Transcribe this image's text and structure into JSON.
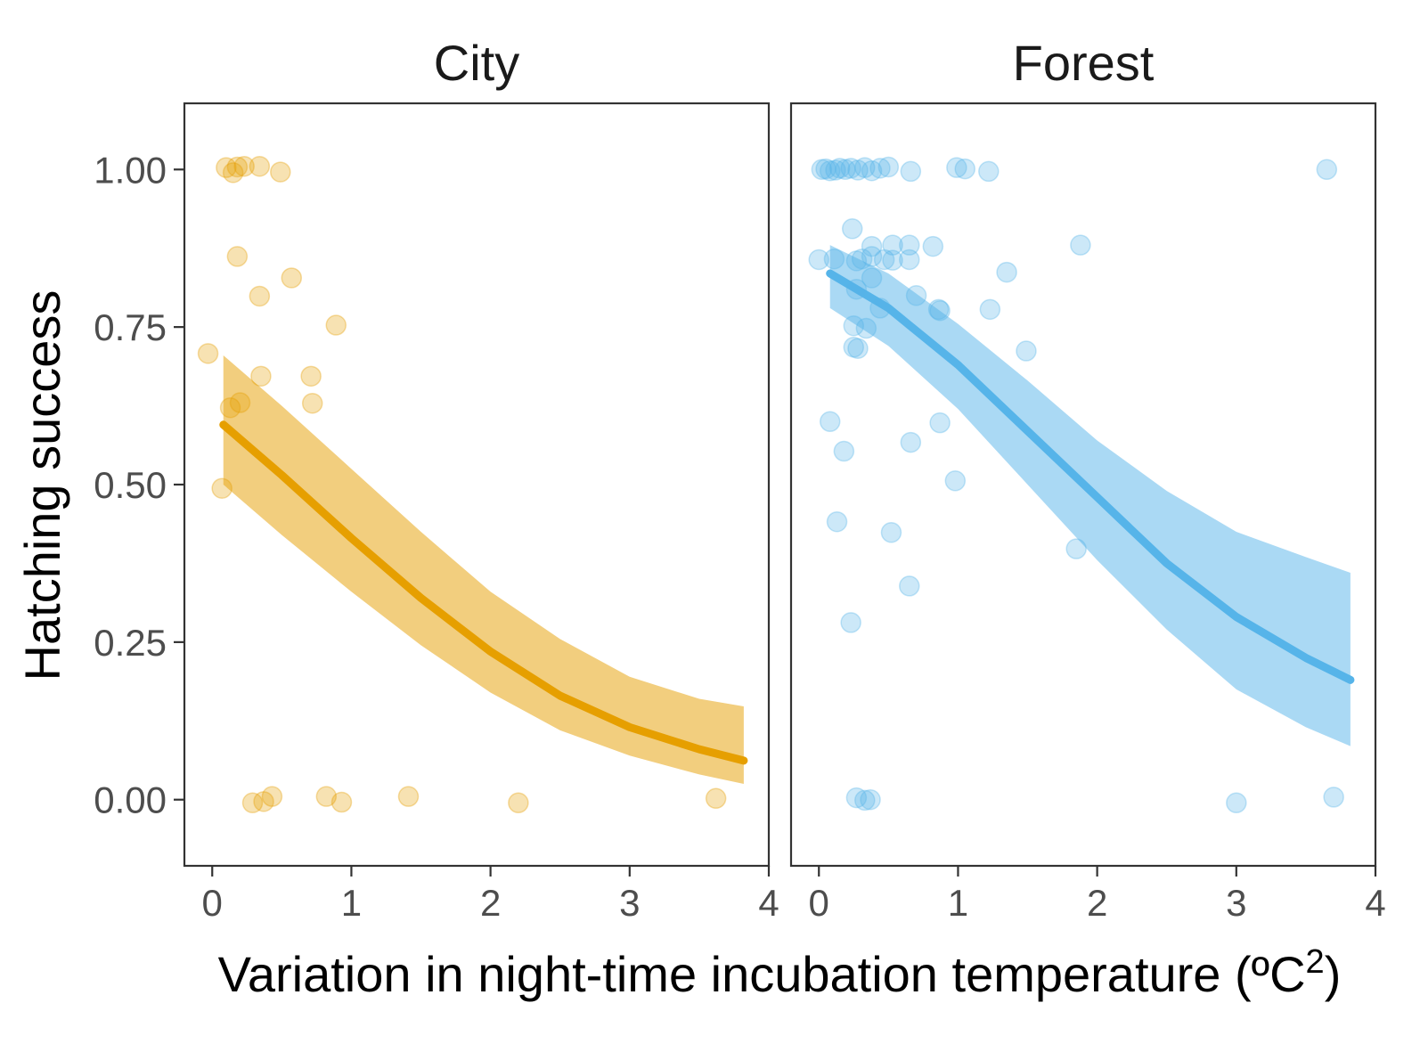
{
  "chart_data": {
    "type": "scatter",
    "ylabel": "Hatching success",
    "xlabel": "Variation in night-time incubation temperature  (ºC²)",
    "xlim": [
      -0.2,
      4.0
    ],
    "ylim": [
      -0.105,
      1.105
    ],
    "x_ticks": [
      "0",
      "1",
      "2",
      "3",
      "4"
    ],
    "y_ticks": [
      "1.00",
      "0.75",
      "0.50",
      "0.25",
      "0.00"
    ],
    "grid": false,
    "panels": [
      {
        "title": "City",
        "color": "#E69F00",
        "band_color": "#F2CE7E",
        "points": [
          [
            0.1,
            1.003
          ],
          [
            0.15,
            0.995
          ],
          [
            0.18,
            1.004
          ],
          [
            0.23,
            1.005
          ],
          [
            0.34,
            1.005
          ],
          [
            0.49,
            0.996
          ],
          [
            0.18,
            0.862
          ],
          [
            0.57,
            0.828
          ],
          [
            0.34,
            0.799
          ],
          [
            0.89,
            0.753
          ],
          [
            -0.03,
            0.708
          ],
          [
            0.35,
            0.672
          ],
          [
            0.71,
            0.672
          ],
          [
            0.2,
            0.63
          ],
          [
            0.13,
            0.622
          ],
          [
            0.72,
            0.629
          ],
          [
            0.07,
            0.494
          ],
          [
            0.29,
            -0.005
          ],
          [
            0.37,
            -0.003
          ],
          [
            0.43,
            0.005
          ],
          [
            0.82,
            0.005
          ],
          [
            0.93,
            -0.004
          ],
          [
            1.41,
            0.005
          ],
          [
            2.2,
            -0.005
          ],
          [
            3.62,
            0.002
          ]
        ],
        "fit": {
          "x": [
            0.08,
            0.5,
            1.0,
            1.5,
            2.0,
            2.5,
            3.0,
            3.5,
            3.82
          ],
          "y": [
            0.595,
            0.515,
            0.415,
            0.32,
            0.235,
            0.165,
            0.115,
            0.08,
            0.062
          ],
          "lower": [
            0.5,
            0.42,
            0.33,
            0.245,
            0.17,
            0.11,
            0.07,
            0.04,
            0.025
          ],
          "upper": [
            0.705,
            0.625,
            0.525,
            0.425,
            0.33,
            0.255,
            0.195,
            0.16,
            0.148
          ]
        }
      },
      {
        "title": "Forest",
        "color": "#56B4E9",
        "band_color": "#AAD9F4",
        "points": [
          [
            0.02,
            1.0
          ],
          [
            0.05,
            1.001
          ],
          [
            0.08,
            0.998
          ],
          [
            0.12,
            0.999
          ],
          [
            0.15,
            1.002
          ],
          [
            0.19,
            1.0
          ],
          [
            0.23,
            1.002
          ],
          [
            0.28,
            0.999
          ],
          [
            0.33,
            1.003
          ],
          [
            0.38,
            0.998
          ],
          [
            0.44,
            1.002
          ],
          [
            0.5,
            1.004
          ],
          [
            0.66,
            0.997
          ],
          [
            0.99,
            1.003
          ],
          [
            1.05,
            1.001
          ],
          [
            1.22,
            0.997
          ],
          [
            3.65,
            1.0
          ],
          [
            0.24,
            0.906
          ],
          [
            0.38,
            0.878
          ],
          [
            0.53,
            0.88
          ],
          [
            0.65,
            0.88
          ],
          [
            0.82,
            0.878
          ],
          [
            1.88,
            0.88
          ],
          [
            0.0,
            0.857
          ],
          [
            0.11,
            0.858
          ],
          [
            0.27,
            0.855
          ],
          [
            0.31,
            0.858
          ],
          [
            0.38,
            0.862
          ],
          [
            0.47,
            0.857
          ],
          [
            0.53,
            0.856
          ],
          [
            0.65,
            0.857
          ],
          [
            1.35,
            0.837
          ],
          [
            0.27,
            0.81
          ],
          [
            0.38,
            0.828
          ],
          [
            0.7,
            0.8
          ],
          [
            0.44,
            0.78
          ],
          [
            0.86,
            0.778
          ],
          [
            0.87,
            0.776
          ],
          [
            1.23,
            0.778
          ],
          [
            0.25,
            0.752
          ],
          [
            0.34,
            0.748
          ],
          [
            0.25,
            0.718
          ],
          [
            0.28,
            0.716
          ],
          [
            1.49,
            0.712
          ],
          [
            0.08,
            0.6
          ],
          [
            0.87,
            0.598
          ],
          [
            0.66,
            0.567
          ],
          [
            0.18,
            0.553
          ],
          [
            0.98,
            0.506
          ],
          [
            0.13,
            0.441
          ],
          [
            0.52,
            0.424
          ],
          [
            1.85,
            0.398
          ],
          [
            0.65,
            0.339
          ],
          [
            0.23,
            0.281
          ],
          [
            0.27,
            0.003
          ],
          [
            0.33,
            -0.001
          ],
          [
            0.37,
            0.0
          ],
          [
            3.0,
            -0.005
          ],
          [
            3.7,
            0.004
          ]
        ],
        "fit": {
          "x": [
            0.08,
            0.5,
            1.0,
            1.5,
            2.0,
            2.5,
            3.0,
            3.5,
            3.82
          ],
          "y": [
            0.835,
            0.78,
            0.69,
            0.585,
            0.48,
            0.375,
            0.29,
            0.225,
            0.19
          ],
          "lower": [
            0.78,
            0.72,
            0.62,
            0.5,
            0.38,
            0.27,
            0.175,
            0.115,
            0.085
          ],
          "upper": [
            0.88,
            0.835,
            0.755,
            0.665,
            0.57,
            0.49,
            0.425,
            0.385,
            0.36
          ]
        }
      }
    ]
  }
}
